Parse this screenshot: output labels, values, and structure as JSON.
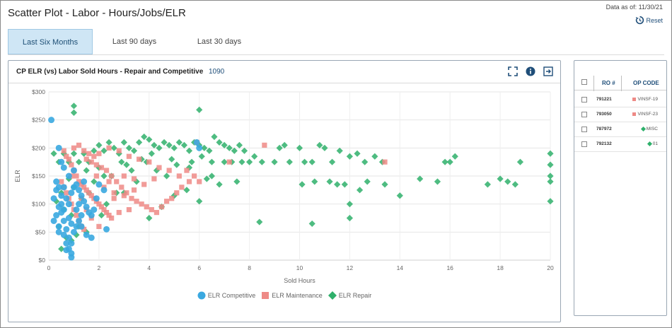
{
  "header": {
    "title": "Scatter Plot - Labor - Hours/Jobs/ELR",
    "data_as_of": "Data as of: 11/30/21",
    "reset_label": "Reset"
  },
  "tabs": [
    {
      "label": "Last Six Months",
      "active": true
    },
    {
      "label": "Last 90 days",
      "active": false
    },
    {
      "label": "Last 30 days",
      "active": false
    }
  ],
  "chart_card": {
    "title": "CP ELR (vs) Labor Sold Hours - Repair and Competitive",
    "count": "1090",
    "icons": [
      "expand-icon",
      "info-icon",
      "export-icon"
    ]
  },
  "colors": {
    "competitive": "#3aa8e0",
    "maintenance": "#ee8a86",
    "repair": "#2fb06b",
    "accent": "#1f4e79"
  },
  "chart_data": {
    "type": "scatter",
    "xlabel": "Sold Hours",
    "ylabel": "ELR",
    "xlim": [
      0,
      20
    ],
    "ylim": [
      0,
      300
    ],
    "xticks": [
      "0",
      "2",
      "4",
      "6",
      "8",
      "10",
      "12",
      "14",
      "16",
      "18",
      "20"
    ],
    "yticks": [
      "$0",
      "$50",
      "$100",
      "$150",
      "$200",
      "$250",
      "$300"
    ],
    "grid": true,
    "legend_position": "bottom",
    "series": [
      {
        "name": "ELR Competitive",
        "marker": "circle",
        "points": [
          [
            0.1,
            250
          ],
          [
            0.4,
            200
          ],
          [
            0.5,
            175
          ],
          [
            0.3,
            125
          ],
          [
            0.2,
            110
          ],
          [
            0.4,
            95
          ],
          [
            0.5,
            85
          ],
          [
            0.6,
            70
          ],
          [
            0.7,
            55
          ],
          [
            0.8,
            40
          ],
          [
            0.8,
            20
          ],
          [
            0.9,
            12
          ],
          [
            0.7,
            30
          ],
          [
            0.6,
            45
          ],
          [
            0.4,
            60
          ],
          [
            0.3,
            80
          ],
          [
            0.5,
            100
          ],
          [
            0.7,
            110
          ],
          [
            0.9,
            120
          ],
          [
            1.0,
            130
          ],
          [
            1.1,
            135
          ],
          [
            1.2,
            125
          ],
          [
            1.3,
            115
          ],
          [
            1.4,
            105
          ],
          [
            1.5,
            95
          ],
          [
            1.6,
            85
          ],
          [
            1.7,
            80
          ],
          [
            1.8,
            90
          ],
          [
            1.9,
            110
          ],
          [
            2.0,
            135
          ],
          [
            1.1,
            60
          ],
          [
            1.2,
            70
          ],
          [
            1.3,
            80
          ],
          [
            1.0,
            50
          ],
          [
            0.9,
            65
          ],
          [
            0.8,
            75
          ],
          [
            0.6,
            90
          ],
          [
            0.5,
            115
          ],
          [
            0.4,
            130
          ],
          [
            0.3,
            140
          ],
          [
            1.5,
            45
          ],
          [
            2.3,
            55
          ],
          [
            1.7,
            40
          ],
          [
            0.8,
            150
          ],
          [
            1.0,
            160
          ],
          [
            0.6,
            165
          ],
          [
            2.2,
            125
          ],
          [
            0.2,
            70
          ],
          [
            0.7,
            18
          ],
          [
            0.9,
            30
          ],
          [
            1.4,
            140
          ],
          [
            1.2,
            100
          ],
          [
            1.1,
            90
          ],
          [
            0.6,
            130
          ],
          [
            0.8,
            100
          ],
          [
            1.3,
            60
          ],
          [
            5.9,
            210
          ],
          [
            6.0,
            200
          ],
          [
            0.9,
            5
          ],
          [
            0.4,
            50
          ]
        ]
      },
      {
        "name": "ELR Maintenance",
        "marker": "square",
        "points": [
          [
            0.6,
            195
          ],
          [
            0.7,
            185
          ],
          [
            0.8,
            180
          ],
          [
            0.9,
            170
          ],
          [
            1.0,
            160
          ],
          [
            1.1,
            150
          ],
          [
            1.2,
            140
          ],
          [
            1.3,
            135
          ],
          [
            1.4,
            130
          ],
          [
            1.5,
            125
          ],
          [
            1.6,
            120
          ],
          [
            1.7,
            115
          ],
          [
            1.8,
            110
          ],
          [
            1.9,
            105
          ],
          [
            2.0,
            100
          ],
          [
            2.1,
            95
          ],
          [
            2.2,
            90
          ],
          [
            2.3,
            85
          ],
          [
            2.4,
            80
          ],
          [
            2.5,
            75
          ],
          [
            0.5,
            140
          ],
          [
            0.6,
            130
          ],
          [
            0.7,
            120
          ],
          [
            0.8,
            110
          ],
          [
            0.9,
            100
          ],
          [
            1.0,
            90
          ],
          [
            1.1,
            80
          ],
          [
            1.2,
            70
          ],
          [
            1.3,
            60
          ],
          [
            1.4,
            55
          ],
          [
            1.5,
            180
          ],
          [
            1.7,
            175
          ],
          [
            1.9,
            170
          ],
          [
            2.1,
            165
          ],
          [
            2.3,
            160
          ],
          [
            2.5,
            150
          ],
          [
            2.7,
            140
          ],
          [
            2.9,
            130
          ],
          [
            3.1,
            120
          ],
          [
            3.3,
            110
          ],
          [
            3.5,
            105
          ],
          [
            3.7,
            100
          ],
          [
            3.9,
            95
          ],
          [
            4.1,
            90
          ],
          [
            4.3,
            85
          ],
          [
            4.5,
            95
          ],
          [
            4.7,
            105
          ],
          [
            4.9,
            110
          ],
          [
            5.1,
            120
          ],
          [
            5.3,
            130
          ],
          [
            2.0,
            190
          ],
          [
            2.4,
            200
          ],
          [
            2.8,
            195
          ],
          [
            3.2,
            185
          ],
          [
            3.6,
            180
          ],
          [
            4.0,
            175
          ],
          [
            4.4,
            165
          ],
          [
            4.8,
            160
          ],
          [
            5.2,
            150
          ],
          [
            5.6,
            140
          ],
          [
            1.0,
            200
          ],
          [
            1.2,
            205
          ],
          [
            1.4,
            195
          ],
          [
            1.6,
            190
          ],
          [
            1.8,
            185
          ],
          [
            2.6,
            120
          ],
          [
            3.0,
            115
          ],
          [
            3.4,
            125
          ],
          [
            3.8,
            135
          ],
          [
            4.2,
            145
          ],
          [
            6.0,
            140
          ],
          [
            5.8,
            150
          ],
          [
            5.5,
            160
          ],
          [
            5.9,
            210
          ],
          [
            7.2,
            175
          ],
          [
            8.6,
            205
          ],
          [
            13.4,
            175
          ],
          [
            1.3,
            110
          ],
          [
            1.5,
            90
          ],
          [
            1.7,
            75
          ],
          [
            0.9,
            150
          ],
          [
            2.2,
            130
          ],
          [
            2.6,
            110
          ],
          [
            3.0,
            150
          ],
          [
            3.4,
            145
          ],
          [
            3.2,
            90
          ],
          [
            2.8,
            85
          ],
          [
            2.4,
            140
          ],
          [
            1.9,
            150
          ],
          [
            2.0,
            60
          ]
        ]
      },
      {
        "name": "ELR Repair",
        "marker": "diamond",
        "points": [
          [
            1.0,
            275
          ],
          [
            1.0,
            263
          ],
          [
            6.0,
            268
          ],
          [
            0.2,
            190
          ],
          [
            0.4,
            175
          ],
          [
            0.6,
            190
          ],
          [
            0.8,
            175
          ],
          [
            1.0,
            190
          ],
          [
            1.2,
            175
          ],
          [
            1.4,
            190
          ],
          [
            1.6,
            175
          ],
          [
            1.8,
            195
          ],
          [
            2.0,
            205
          ],
          [
            2.2,
            195
          ],
          [
            2.4,
            210
          ],
          [
            2.6,
            200
          ],
          [
            2.8,
            190
          ],
          [
            3.0,
            210
          ],
          [
            3.2,
            200
          ],
          [
            3.4,
            195
          ],
          [
            3.6,
            210
          ],
          [
            3.8,
            220
          ],
          [
            4.0,
            215
          ],
          [
            4.2,
            205
          ],
          [
            4.4,
            200
          ],
          [
            4.6,
            210
          ],
          [
            4.8,
            205
          ],
          [
            5.0,
            200
          ],
          [
            5.2,
            210
          ],
          [
            5.4,
            205
          ],
          [
            5.6,
            195
          ],
          [
            5.8,
            210
          ],
          [
            6.0,
            205
          ],
          [
            6.2,
            200
          ],
          [
            6.4,
            195
          ],
          [
            6.6,
            220
          ],
          [
            6.8,
            210
          ],
          [
            7.0,
            205
          ],
          [
            7.2,
            200
          ],
          [
            7.4,
            195
          ],
          [
            7.6,
            205
          ],
          [
            7.8,
            195
          ],
          [
            8.0,
            175
          ],
          [
            8.2,
            185
          ],
          [
            8.5,
            175
          ],
          [
            9.0,
            175
          ],
          [
            9.2,
            200
          ],
          [
            9.4,
            205
          ],
          [
            9.6,
            175
          ],
          [
            10.0,
            200
          ],
          [
            10.2,
            175
          ],
          [
            10.5,
            175
          ],
          [
            10.8,
            205
          ],
          [
            11.0,
            200
          ],
          [
            11.3,
            175
          ],
          [
            11.6,
            195
          ],
          [
            12.0,
            185
          ],
          [
            12.3,
            190
          ],
          [
            12.6,
            175
          ],
          [
            13.0,
            185
          ],
          [
            13.3,
            175
          ],
          [
            10.1,
            135
          ],
          [
            10.6,
            140
          ],
          [
            11.2,
            140
          ],
          [
            11.5,
            135
          ],
          [
            11.8,
            135
          ],
          [
            12.0,
            100
          ],
          [
            12.4,
            125
          ],
          [
            12.7,
            140
          ],
          [
            13.4,
            135
          ],
          [
            14.0,
            115
          ],
          [
            14.8,
            145
          ],
          [
            15.5,
            140
          ],
          [
            15.8,
            175
          ],
          [
            16.0,
            175
          ],
          [
            16.2,
            185
          ],
          [
            17.5,
            135
          ],
          [
            18.0,
            145
          ],
          [
            18.3,
            140
          ],
          [
            18.6,
            135
          ],
          [
            18.8,
            175
          ],
          [
            20.0,
            190
          ],
          [
            20.0,
            170
          ],
          [
            20.0,
            150
          ],
          [
            20.0,
            140
          ],
          [
            20.0,
            105
          ],
          [
            12.0,
            75
          ],
          [
            10.5,
            65
          ],
          [
            8.4,
            68
          ],
          [
            6.5,
            150
          ],
          [
            4.0,
            75
          ],
          [
            4.5,
            95
          ],
          [
            5.0,
            115
          ],
          [
            5.5,
            125
          ],
          [
            6.0,
            105
          ],
          [
            6.3,
            145
          ],
          [
            6.8,
            135
          ],
          [
            7.5,
            140
          ],
          [
            3.0,
            120
          ],
          [
            3.5,
            140
          ],
          [
            2.5,
            150
          ],
          [
            2.0,
            165
          ],
          [
            1.5,
            160
          ],
          [
            1.0,
            130
          ],
          [
            0.8,
            145
          ],
          [
            0.5,
            120
          ],
          [
            0.3,
            105
          ],
          [
            0.6,
            90
          ],
          [
            0.9,
            80
          ],
          [
            1.2,
            60
          ],
          [
            1.5,
            50
          ],
          [
            0.7,
            40
          ],
          [
            0.5,
            20
          ],
          [
            0.9,
            35
          ],
          [
            1.1,
            45
          ],
          [
            2.1,
            80
          ],
          [
            2.3,
            100
          ],
          [
            2.7,
            120
          ],
          [
            3.3,
            160
          ],
          [
            3.9,
            175
          ],
          [
            4.3,
            160
          ],
          [
            4.7,
            150
          ],
          [
            5.1,
            170
          ],
          [
            5.7,
            175
          ],
          [
            6.1,
            185
          ],
          [
            6.5,
            175
          ],
          [
            7.0,
            175
          ],
          [
            7.3,
            175
          ],
          [
            7.7,
            175
          ],
          [
            5.6,
            165
          ],
          [
            4.9,
            180
          ],
          [
            4.1,
            190
          ],
          [
            3.7,
            180
          ],
          [
            3.1,
            170
          ],
          [
            2.9,
            175
          ],
          [
            2.2,
            150
          ],
          [
            1.8,
            140
          ],
          [
            1.6,
            120
          ],
          [
            1.3,
            110
          ],
          [
            0.4,
            60
          ]
        ]
      }
    ]
  },
  "table": {
    "col_ro": "RO #",
    "col_op": "OP CODE",
    "rows": [
      {
        "ro": "791221",
        "op": "VINSF-19",
        "marker": "square"
      },
      {
        "ro": "793050",
        "op": "VINSF-23",
        "marker": "square"
      },
      {
        "ro": "787972",
        "op": "MISC",
        "marker": "diamond"
      },
      {
        "ro": "792132",
        "op": "01",
        "marker": "diamond"
      }
    ]
  }
}
